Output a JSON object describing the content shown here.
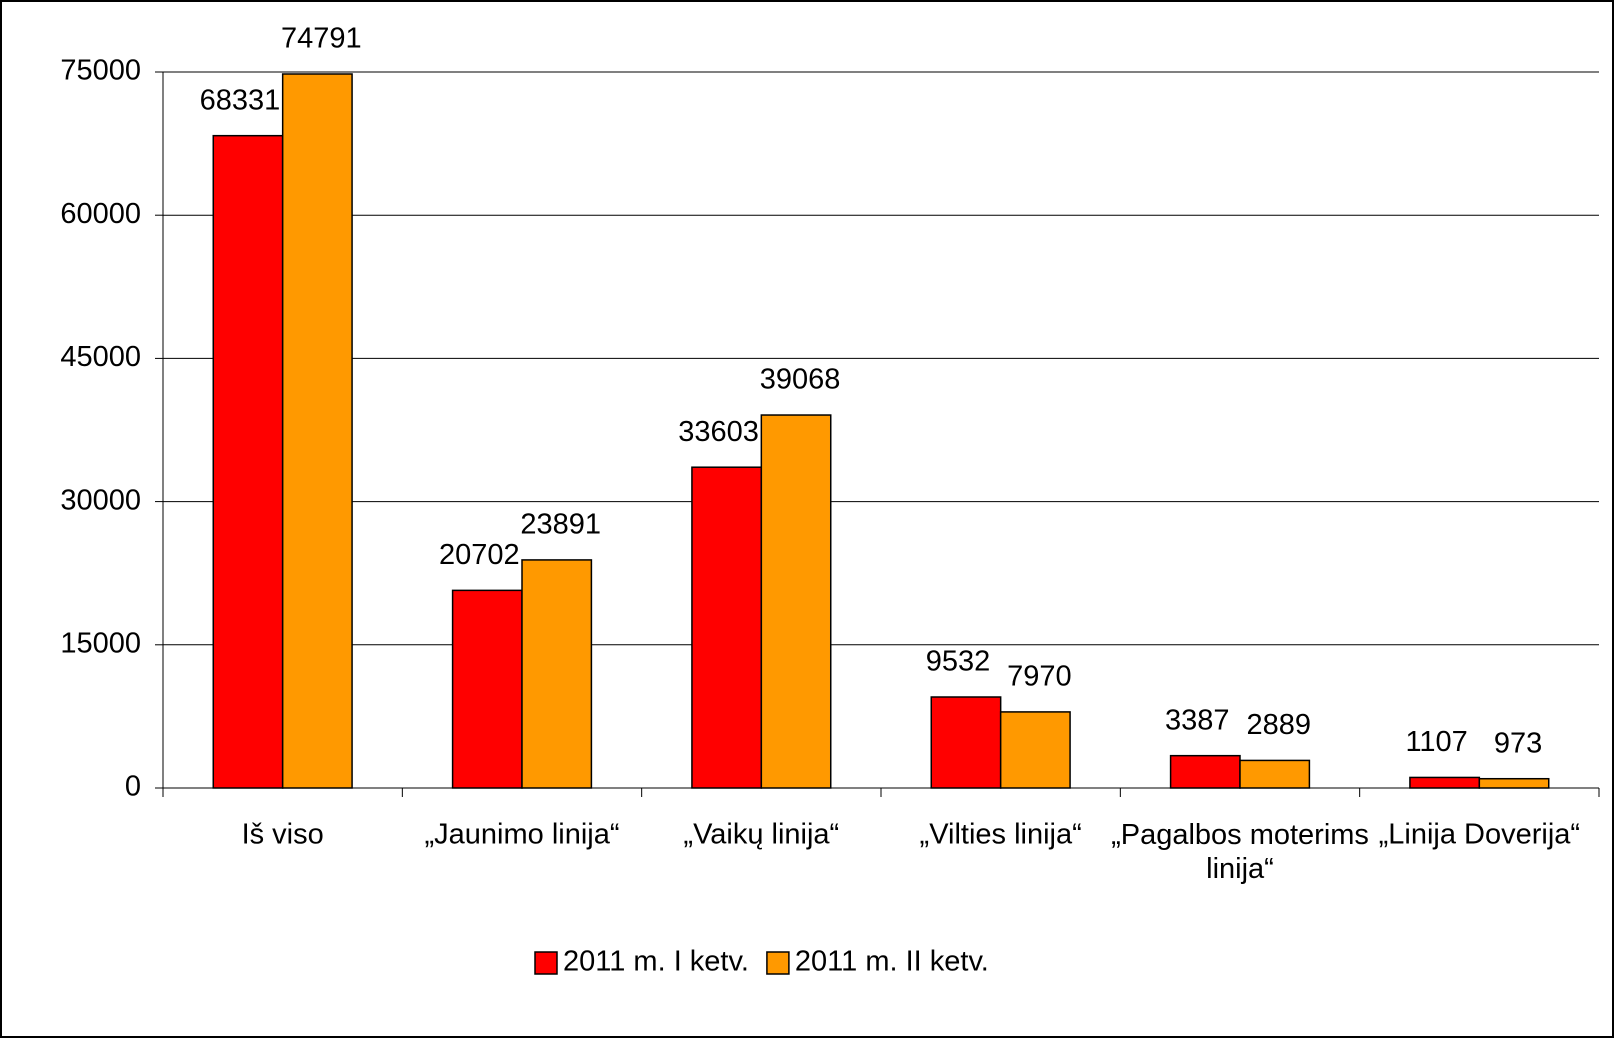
{
  "chart_data": {
    "type": "bar",
    "categories": [
      "Iš viso",
      "„Jaunimo linija“",
      "„Vaikų linija“",
      "„Vilties linija“",
      "„Pagalbos moterims linija“",
      "„Linija Doverija“"
    ],
    "series": [
      {
        "name": "2011 m. I ketv.",
        "color": "#ff0000",
        "values": [
          68331,
          20702,
          33603,
          9532,
          3387,
          1107
        ]
      },
      {
        "name": "2011 m. II ketv.",
        "color": "#ff9900",
        "values": [
          74791,
          23891,
          39068,
          7970,
          2889,
          973
        ]
      }
    ],
    "ylim": [
      0,
      75000
    ],
    "yticks": [
      0,
      15000,
      30000,
      45000,
      60000,
      75000
    ],
    "grid": true,
    "legend": "bottom"
  }
}
